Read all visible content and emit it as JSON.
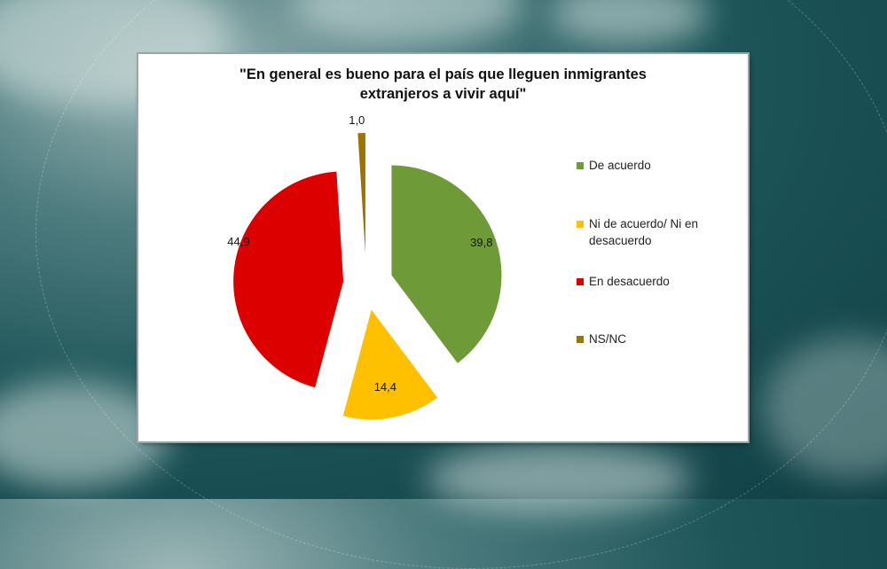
{
  "chart_data": {
    "type": "pie",
    "title": "\"En general es bueno para el país que lleguen inmigrantes extranjeros a vivir aquí\"",
    "title_lines": [
      "\"En general es bueno para el país que lleguen inmigrantes",
      "extranjeros a vivir aquí\""
    ],
    "categories": [
      "De acuerdo",
      "Ni de acuerdo/ Ni en desacuerdo",
      "En desacuerdo",
      "NS/NC"
    ],
    "values": [
      39.8,
      14.4,
      44.9,
      1.0
    ],
    "value_labels": [
      "39,8",
      "14,4",
      "44,9",
      "1,0"
    ],
    "colors": [
      "#6f9a38",
      "#ffc000",
      "#dd0000",
      "#a07200"
    ],
    "exploded": true,
    "legend_position": "right"
  },
  "legend": {
    "items": [
      {
        "label": "De acuerdo",
        "color": "#6f9a38"
      },
      {
        "label": "Ni de acuerdo/ Ni en desacuerdo",
        "color": "#ffc000"
      },
      {
        "label": "En desacuerdo",
        "color": "#dd0000"
      },
      {
        "label": "NS/NC",
        "color": "#a07200"
      }
    ]
  }
}
